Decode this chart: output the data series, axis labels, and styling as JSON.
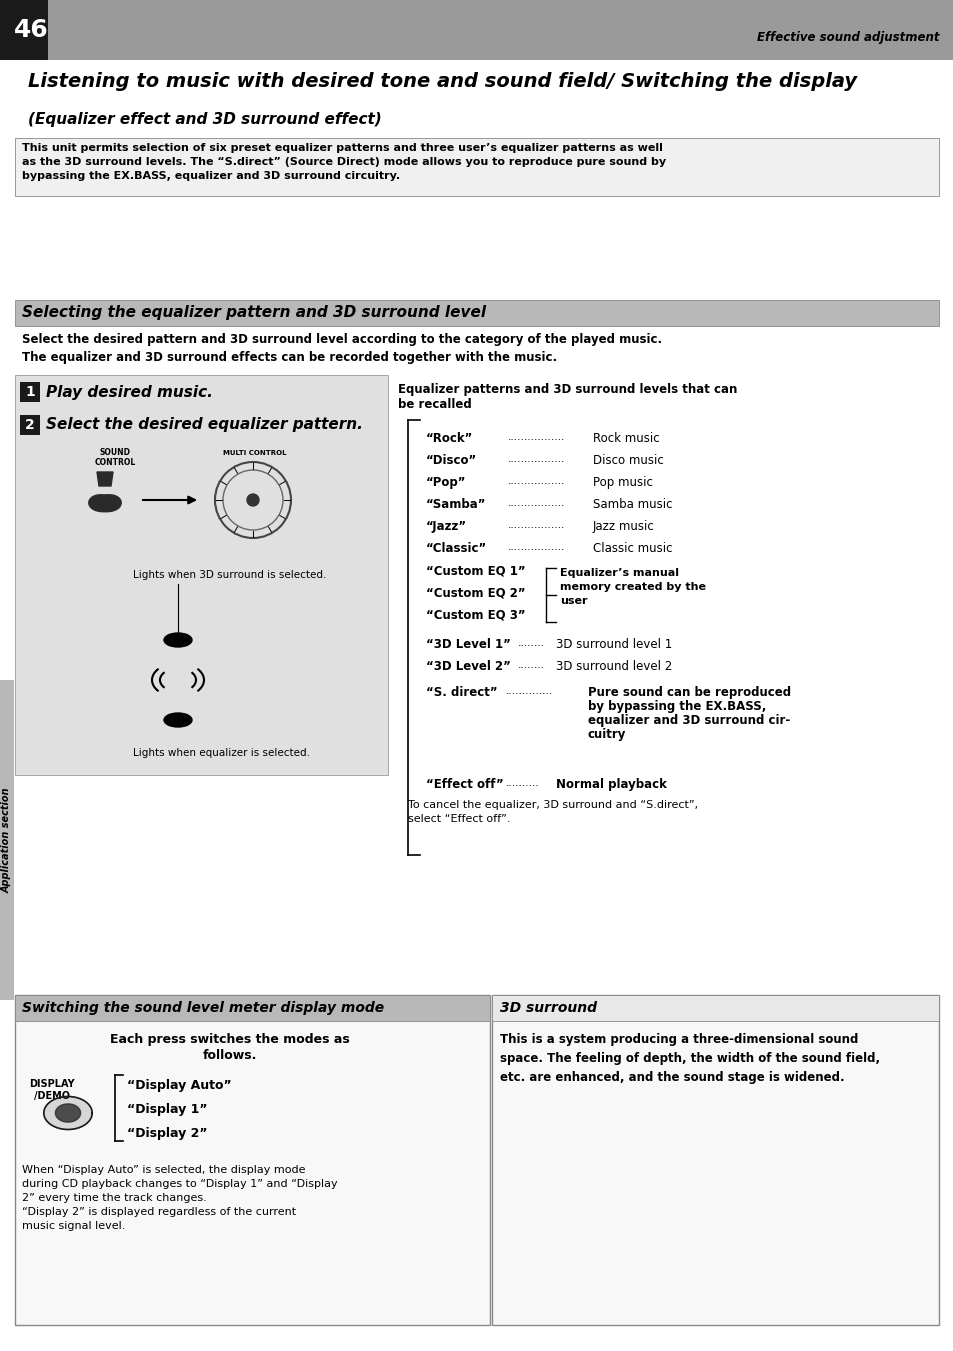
{
  "page_number": "46",
  "header_right": "Effective sound adjustment",
  "main_title": "Listening to music with desired tone and sound field/ Switching the display",
  "subtitle": "(Equalizer effect and 3D surround effect)",
  "intro_text": "This unit permits selection of six preset equalizer patterns and three user’s equalizer patterns as well\nas the 3D surround levels. The “S.direct” (Source Direct) mode allows you to reproduce pure sound by\nbypassing the EX.BASS, equalizer and 3D surround circuitry.",
  "section1_title": "Selecting the equalizer pattern and 3D surround level",
  "section1_desc": "Select the desired pattern and 3D surround level according to the category of the played music.\nThe equalizer and 3D surround effects can be recorded together with the music.",
  "step1": "Play desired music.",
  "step2": "Select the desired equalizer pattern.",
  "eq_title_line1": "Equalizer patterns and 3D surround levels that can",
  "eq_title_line2": "be recalled",
  "eq_items": [
    [
      "“Rock”",
      "Rock music"
    ],
    [
      "“Disco”",
      "Disco music"
    ],
    [
      "“Pop”",
      "Pop music"
    ],
    [
      "“Samba”",
      "Samba music"
    ],
    [
      "“Jazz”",
      "Jazz music"
    ],
    [
      "“Classic”",
      "Classic music"
    ]
  ],
  "custom_items": [
    "“Custom EQ 1”",
    "“Custom EQ 2”",
    "“Custom EQ 3”"
  ],
  "custom_desc_line1": "Equalizer’s manual",
  "custom_desc_line2": "memory created by the",
  "custom_desc_line3": "user",
  "surround_items": [
    [
      "“3D Level 1”",
      "........",
      "3D surround level 1"
    ],
    [
      "“3D Level 2”",
      "........",
      "3D surround level 2"
    ]
  ],
  "sdirect_label": "“S. direct”",
  "sdirect_dots": "..............",
  "sdirect_desc_line1": "Pure sound can be reproduced",
  "sdirect_desc_line2": "by bypassing the EX.BASS,",
  "sdirect_desc_line3": "equalizer and 3D surround cir-",
  "sdirect_desc_line4": "cuitry",
  "effectoff_label": "“Effect off”",
  "effectoff_dots": "..........",
  "effectoff_desc": "Normal playback",
  "cancel_text_line1": "To cancel the equalizer, 3D surround and “S.direct”,",
  "cancel_text_line2": "select “Effect off”.",
  "lights_3d": "Lights when 3D surround is selected.",
  "lights_eq": "Lights when equalizer is selected.",
  "sound_control_label": "SOUND\nCONTROL",
  "multi_control_label": "MULTI CONTROL",
  "section2_title": "Switching the sound level meter display mode",
  "section2_step_line1": "Each press switches the modes as",
  "section2_step_line2": "follows.",
  "display_label": "DISPLAY\n/DEMO",
  "display_items": [
    "“Display Auto”",
    "“Display 1”",
    "“Display 2”"
  ],
  "section2_body": "When “Display Auto” is selected, the display mode\nduring CD playback changes to “Display 1” and “Display\n2” every time the track changes.\n“Display 2” is displayed regardless of the current\nmusic signal level.",
  "section3_title": "3D surround",
  "section3_body": "This is a system producing a three-dimensional sound\nspace. The feeling of depth, the width of the sound field,\netc. are enhanced, and the sound stage is widened.",
  "bg_color": "#ffffff",
  "header_bg": "#9a9a9a",
  "black_strip_color": "#1a1a1a",
  "section_header_bg": "#b8b8b8",
  "step_box_bg": "#e0e0e0",
  "box_border_color": "#888888"
}
